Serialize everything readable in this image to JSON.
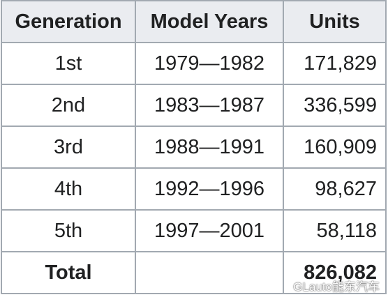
{
  "table": {
    "header": [
      "Generation",
      "Model Years",
      "Units"
    ],
    "rows": [
      [
        "1st",
        "1979—1982",
        "171,829"
      ],
      [
        "2nd",
        "1983—1987",
        "336,599"
      ],
      [
        "3rd",
        "1988—1991",
        "160,909"
      ],
      [
        "4th",
        "1992—1996",
        "98,627"
      ],
      [
        "5th",
        "1997—2001",
        "58,118"
      ]
    ],
    "total": {
      "label": "Total",
      "value": "826,082"
    }
  },
  "watermark": "GLauto能东汽车"
}
